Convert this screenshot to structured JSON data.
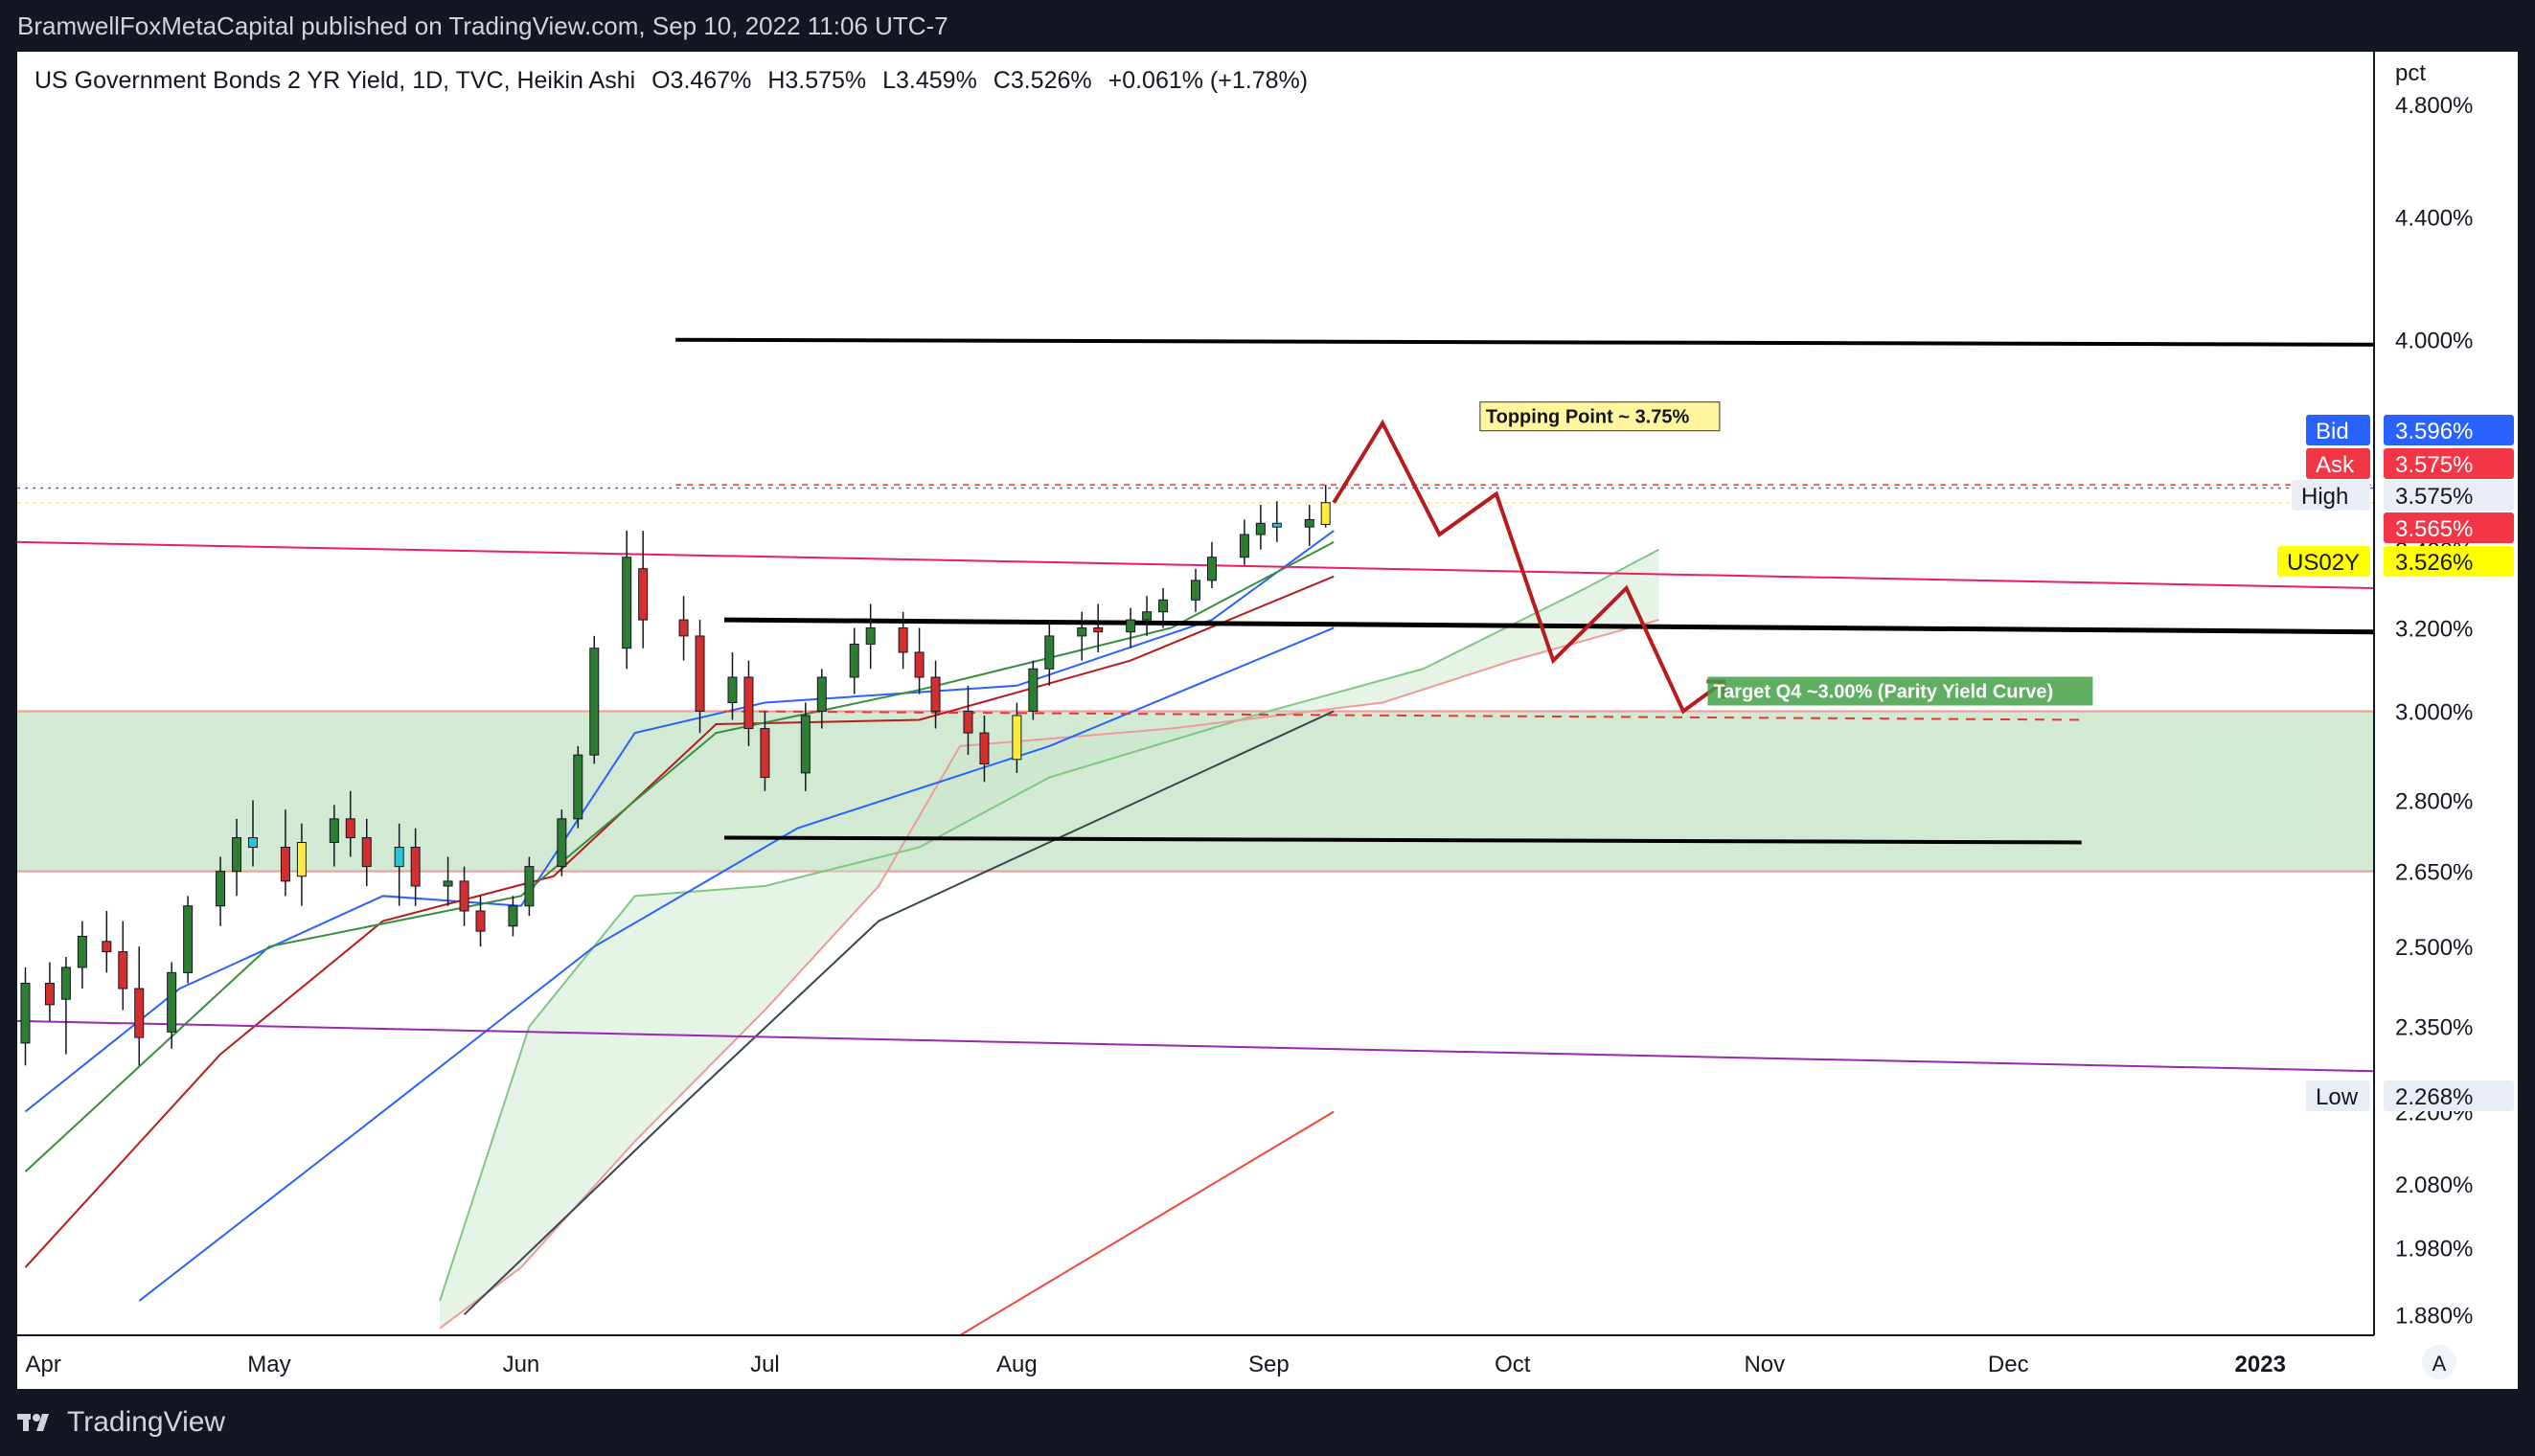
{
  "header": {
    "publisher_line": "BramwellFoxMetaCapital published on TradingView.com, Sep 10, 2022 11:06 UTC-7"
  },
  "footer": {
    "brand": "TradingView"
  },
  "legend": {
    "symbol": "US Government Bonds 2 YR Yield, 1D, TVC, Heikin Ashi",
    "open": "O3.467%",
    "high": "H3.575%",
    "low": "L3.459%",
    "close": "C3.526%",
    "change": "+0.061% (+1.78%)"
  },
  "price_axis": {
    "unit": "pct",
    "ticks": [
      "4.800%",
      "4.400%",
      "4.000%",
      "3.400%",
      "3.200%",
      "3.000%",
      "2.800%",
      "2.650%",
      "2.500%",
      "2.350%",
      "2.200%",
      "2.080%",
      "1.980%",
      "1.880%"
    ],
    "tags": [
      {
        "label": "Bid",
        "value": "3.596%",
        "color": "#2962ff",
        "text_color": "#ffffff"
      },
      {
        "label": "Ask",
        "value": "3.575%",
        "color": "#f23645",
        "text_color": "#ffffff"
      },
      {
        "label": "High",
        "value": "3.575%",
        "color": "#e9eef6",
        "text_color": "#131722"
      },
      {
        "label": "",
        "value": "3.565%",
        "color": "#f23645",
        "text_color": "#ffffff"
      },
      {
        "label": "US02Y",
        "value": "3.526%",
        "color": "#ffff00",
        "text_color": "#131722"
      },
      {
        "label": "Low",
        "value": "2.268%",
        "color": "#e9eef6",
        "text_color": "#131722"
      }
    ],
    "auto_button": "A"
  },
  "time_axis": {
    "ticks": [
      "Apr",
      "May",
      "Jun",
      "Jul",
      "Aug",
      "Sep",
      "Oct",
      "Nov",
      "Dec",
      "2023"
    ]
  },
  "annotations": {
    "topping": "Topping Point ~ 3.75%",
    "target": "Target Q4 ~3.00% (Parity Yield Curve)"
  },
  "colors": {
    "bull": "#2e7d32",
    "bull_light": "#81c784",
    "bear": "#d32f2f",
    "bear_light": "#e57373",
    "doji_yellow": "#ffeb3b",
    "doji_cyan": "#26c6da",
    "projection": "#b71c1c",
    "support_zone": "#a5d6a7",
    "cloud": "#c8e6c9"
  },
  "chart_data": {
    "type": "candlestick",
    "title": "US Government Bonds 2 YR Yield, 1D, TVC, Heikin Ashi",
    "ylabel": "pct",
    "ylim": [
      1.85,
      5.0
    ],
    "y_scale": "log",
    "x_range": [
      "2022-03-31",
      "2023-01-15"
    ],
    "last_close": 3.526,
    "bid": 3.596,
    "ask": 3.575,
    "high": 3.575,
    "low": 2.268,
    "candles": [
      [
        "2022-04-01",
        2.32,
        2.46,
        2.28,
        2.43,
        "bull"
      ],
      [
        "2022-04-04",
        2.43,
        2.47,
        2.36,
        2.39,
        "bear"
      ],
      [
        "2022-04-06",
        2.4,
        2.48,
        2.3,
        2.46,
        "bull"
      ],
      [
        "2022-04-08",
        2.46,
        2.55,
        2.42,
        2.52,
        "bull"
      ],
      [
        "2022-04-11",
        2.51,
        2.57,
        2.45,
        2.49,
        "bear"
      ],
      [
        "2022-04-13",
        2.49,
        2.55,
        2.38,
        2.42,
        "bear"
      ],
      [
        "2022-04-15",
        2.42,
        2.5,
        2.28,
        2.33,
        "bear"
      ],
      [
        "2022-04-19",
        2.34,
        2.47,
        2.31,
        2.45,
        "bull"
      ],
      [
        "2022-04-21",
        2.45,
        2.6,
        2.43,
        2.58,
        "bull"
      ],
      [
        "2022-04-25",
        2.58,
        2.68,
        2.54,
        2.65,
        "bull"
      ],
      [
        "2022-04-27",
        2.65,
        2.76,
        2.6,
        2.72,
        "bull"
      ],
      [
        "2022-04-29",
        2.72,
        2.8,
        2.66,
        2.7,
        "cyan"
      ],
      [
        "2022-05-03",
        2.7,
        2.78,
        2.6,
        2.63,
        "bear"
      ],
      [
        "2022-05-05",
        2.64,
        2.75,
        2.58,
        2.71,
        "yellow"
      ],
      [
        "2022-05-09",
        2.71,
        2.79,
        2.66,
        2.76,
        "bull"
      ],
      [
        "2022-05-11",
        2.76,
        2.82,
        2.68,
        2.72,
        "bear"
      ],
      [
        "2022-05-13",
        2.72,
        2.76,
        2.62,
        2.66,
        "bear"
      ],
      [
        "2022-05-17",
        2.66,
        2.75,
        2.58,
        2.7,
        "cyan"
      ],
      [
        "2022-05-19",
        2.7,
        2.74,
        2.58,
        2.62,
        "bear"
      ],
      [
        "2022-05-23",
        2.62,
        2.68,
        2.58,
        2.63,
        "bull"
      ],
      [
        "2022-05-25",
        2.63,
        2.66,
        2.54,
        2.57,
        "bear"
      ],
      [
        "2022-05-27",
        2.57,
        2.6,
        2.5,
        2.53,
        "bear"
      ],
      [
        "2022-05-31",
        2.54,
        2.6,
        2.52,
        2.58,
        "bull"
      ],
      [
        "2022-06-02",
        2.58,
        2.68,
        2.56,
        2.66,
        "bull"
      ],
      [
        "2022-06-06",
        2.66,
        2.78,
        2.64,
        2.76,
        "bull"
      ],
      [
        "2022-06-08",
        2.76,
        2.92,
        2.74,
        2.9,
        "bull"
      ],
      [
        "2022-06-10",
        2.9,
        3.18,
        2.88,
        3.15,
        "bull"
      ],
      [
        "2022-06-14",
        3.15,
        3.45,
        3.1,
        3.38,
        "bull"
      ],
      [
        "2022-06-16",
        3.35,
        3.45,
        3.15,
        3.22,
        "bear"
      ],
      [
        "2022-06-21",
        3.22,
        3.28,
        3.12,
        3.18,
        "bear"
      ],
      [
        "2022-06-23",
        3.18,
        3.22,
        2.95,
        3.0,
        "bear"
      ],
      [
        "2022-06-27",
        3.02,
        3.14,
        2.98,
        3.08,
        "bull"
      ],
      [
        "2022-06-29",
        3.08,
        3.12,
        2.92,
        2.96,
        "bear"
      ],
      [
        "2022-07-01",
        2.96,
        3.0,
        2.82,
        2.85,
        "bear"
      ],
      [
        "2022-07-06",
        2.86,
        3.02,
        2.82,
        2.99,
        "bull"
      ],
      [
        "2022-07-08",
        3.0,
        3.1,
        2.96,
        3.08,
        "bull"
      ],
      [
        "2022-07-12",
        3.08,
        3.2,
        3.04,
        3.16,
        "bull"
      ],
      [
        "2022-07-14",
        3.16,
        3.26,
        3.1,
        3.2,
        "bull"
      ],
      [
        "2022-07-18",
        3.2,
        3.24,
        3.1,
        3.14,
        "bear"
      ],
      [
        "2022-07-20",
        3.14,
        3.2,
        3.04,
        3.08,
        "bear"
      ],
      [
        "2022-07-22",
        3.08,
        3.12,
        2.96,
        3.0,
        "bear"
      ],
      [
        "2022-07-26",
        3.0,
        3.06,
        2.9,
        2.95,
        "bear"
      ],
      [
        "2022-07-28",
        2.95,
        2.99,
        2.84,
        2.88,
        "bear"
      ],
      [
        "2022-08-01",
        2.89,
        3.02,
        2.86,
        2.99,
        "yellow"
      ],
      [
        "2022-08-03",
        3.0,
        3.12,
        2.98,
        3.1,
        "bull"
      ],
      [
        "2022-08-05",
        3.1,
        3.22,
        3.06,
        3.18,
        "bull"
      ],
      [
        "2022-08-09",
        3.18,
        3.24,
        3.12,
        3.2,
        "bull"
      ],
      [
        "2022-08-11",
        3.2,
        3.26,
        3.14,
        3.19,
        "bear"
      ],
      [
        "2022-08-15",
        3.19,
        3.25,
        3.15,
        3.22,
        "bull"
      ],
      [
        "2022-08-17",
        3.22,
        3.28,
        3.18,
        3.24,
        "bull"
      ],
      [
        "2022-08-19",
        3.24,
        3.3,
        3.2,
        3.27,
        "bull"
      ],
      [
        "2022-08-23",
        3.27,
        3.35,
        3.24,
        3.32,
        "bull"
      ],
      [
        "2022-08-25",
        3.32,
        3.42,
        3.3,
        3.38,
        "bull"
      ],
      [
        "2022-08-29",
        3.38,
        3.48,
        3.36,
        3.44,
        "bull"
      ],
      [
        "2022-08-31",
        3.44,
        3.52,
        3.4,
        3.47,
        "bull"
      ],
      [
        "2022-09-02",
        3.47,
        3.53,
        3.42,
        3.46,
        "cyan"
      ],
      [
        "2022-09-06",
        3.46,
        3.52,
        3.41,
        3.48,
        "bull"
      ],
      [
        "2022-09-08",
        3.467,
        3.575,
        3.459,
        3.526,
        "yellow"
      ]
    ],
    "levels": {
      "upper_resistance": 4.0,
      "range_top": 3.2,
      "range_bottom": 2.72,
      "support_zone": [
        2.65,
        3.0
      ],
      "target_dashed": 3.0
    },
    "projection_path": [
      [
        "2022-09-09",
        3.526
      ],
      [
        "2022-09-15",
        3.75
      ],
      [
        "2022-09-22",
        3.44
      ],
      [
        "2022-09-29",
        3.55
      ],
      [
        "2022-10-06",
        3.12
      ],
      [
        "2022-10-15",
        3.3
      ],
      [
        "2022-10-22",
        3.0
      ],
      [
        "2022-10-27",
        3.07
      ]
    ]
  }
}
